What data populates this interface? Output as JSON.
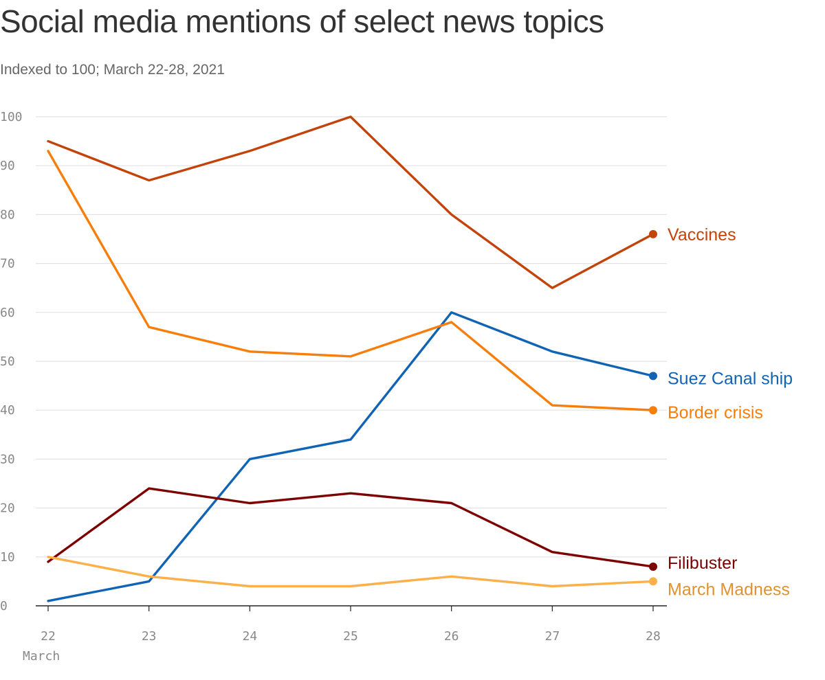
{
  "header": {
    "title": "Social media mentions of select news topics",
    "subtitle": "Indexed to 100; March 22-28, 2021"
  },
  "chart_data": {
    "type": "line",
    "title": "Social media mentions of select news topics",
    "subtitle": "Indexed to 100; March 22-28, 2021",
    "x": [
      22,
      23,
      24,
      25,
      26,
      27,
      28
    ],
    "x_tick_labels": [
      "22",
      "23",
      "24",
      "25",
      "26",
      "27",
      "28"
    ],
    "xlabel": "March",
    "ylabel": "",
    "ylim": [
      0,
      100
    ],
    "y_ticks": [
      0,
      10,
      20,
      30,
      40,
      50,
      60,
      70,
      80,
      90,
      100
    ],
    "grid": true,
    "legend": "direct labels at line ends (right)",
    "series": [
      {
        "name": "Vaccines",
        "color": "#c2440a",
        "values": [
          95,
          87,
          93,
          100,
          80,
          65,
          76
        ]
      },
      {
        "name": "Suez Canal ship",
        "color": "#1164b4",
        "values": [
          1,
          5,
          30,
          34,
          60,
          52,
          47
        ]
      },
      {
        "name": "Border crisis",
        "color": "#f77e0b",
        "values": [
          93,
          57,
          52,
          51,
          58,
          41,
          40
        ]
      },
      {
        "name": "Filibuster",
        "color": "#7c0000",
        "values": [
          9,
          24,
          21,
          23,
          21,
          11,
          8
        ]
      },
      {
        "name": "March Madness",
        "color": "#fbb04a",
        "label_color": "#e0922e",
        "values": [
          10,
          6,
          4,
          4,
          6,
          4,
          5
        ]
      }
    ]
  }
}
